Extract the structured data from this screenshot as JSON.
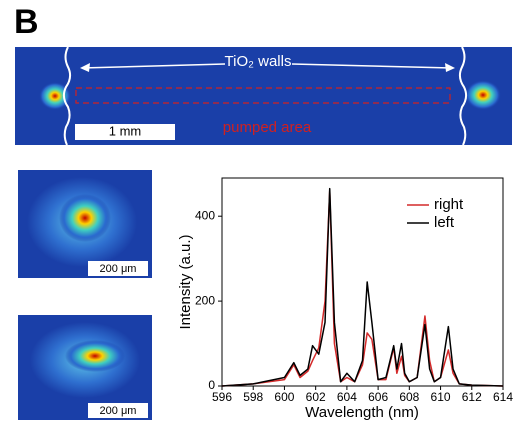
{
  "panel_label": "B",
  "top_image": {
    "walls_label": "TiO₂ walls",
    "scale_bar": "1 mm",
    "region_label": "pumped area"
  },
  "insets": [
    {
      "scale_bar": "200 μm"
    },
    {
      "scale_bar": "200 μm"
    }
  ],
  "chart_data": {
    "type": "line",
    "x_label": "Wavelength (nm)",
    "y_label": "Intensity (a.u.)",
    "x": [
      596,
      598,
      600,
      600.6,
      601,
      601.5,
      601.8,
      602.2,
      602.6,
      602.9,
      603.2,
      603.6,
      604,
      604.5,
      605,
      605.3,
      605.6,
      606,
      606.5,
      607,
      607.2,
      607.5,
      607.7,
      608,
      608.5,
      609,
      609.3,
      609.6,
      610,
      610.5,
      610.8,
      611.2,
      612,
      614
    ],
    "series": [
      {
        "name": "right",
        "color": "#d42a2a",
        "values": [
          0,
          5,
          15,
          50,
          20,
          35,
          60,
          90,
          200,
          460,
          100,
          10,
          20,
          10,
          50,
          125,
          110,
          15,
          15,
          90,
          30,
          70,
          25,
          10,
          20,
          165,
          60,
          10,
          20,
          85,
          30,
          5,
          2,
          0
        ]
      },
      {
        "name": "left",
        "color": "#000000",
        "values": [
          0,
          5,
          20,
          55,
          25,
          40,
          95,
          75,
          150,
          465,
          150,
          10,
          30,
          10,
          60,
          245,
          150,
          15,
          20,
          95,
          40,
          100,
          30,
          10,
          20,
          145,
          40,
          10,
          20,
          140,
          40,
          5,
          2,
          0
        ]
      }
    ],
    "xlim": [
      596,
      614
    ],
    "xticks": [
      596,
      598,
      600,
      602,
      604,
      606,
      608,
      610,
      612,
      614
    ],
    "ylim": [
      0,
      490
    ],
    "yticks": [
      0,
      200,
      400
    ],
    "legend": "upper right"
  }
}
